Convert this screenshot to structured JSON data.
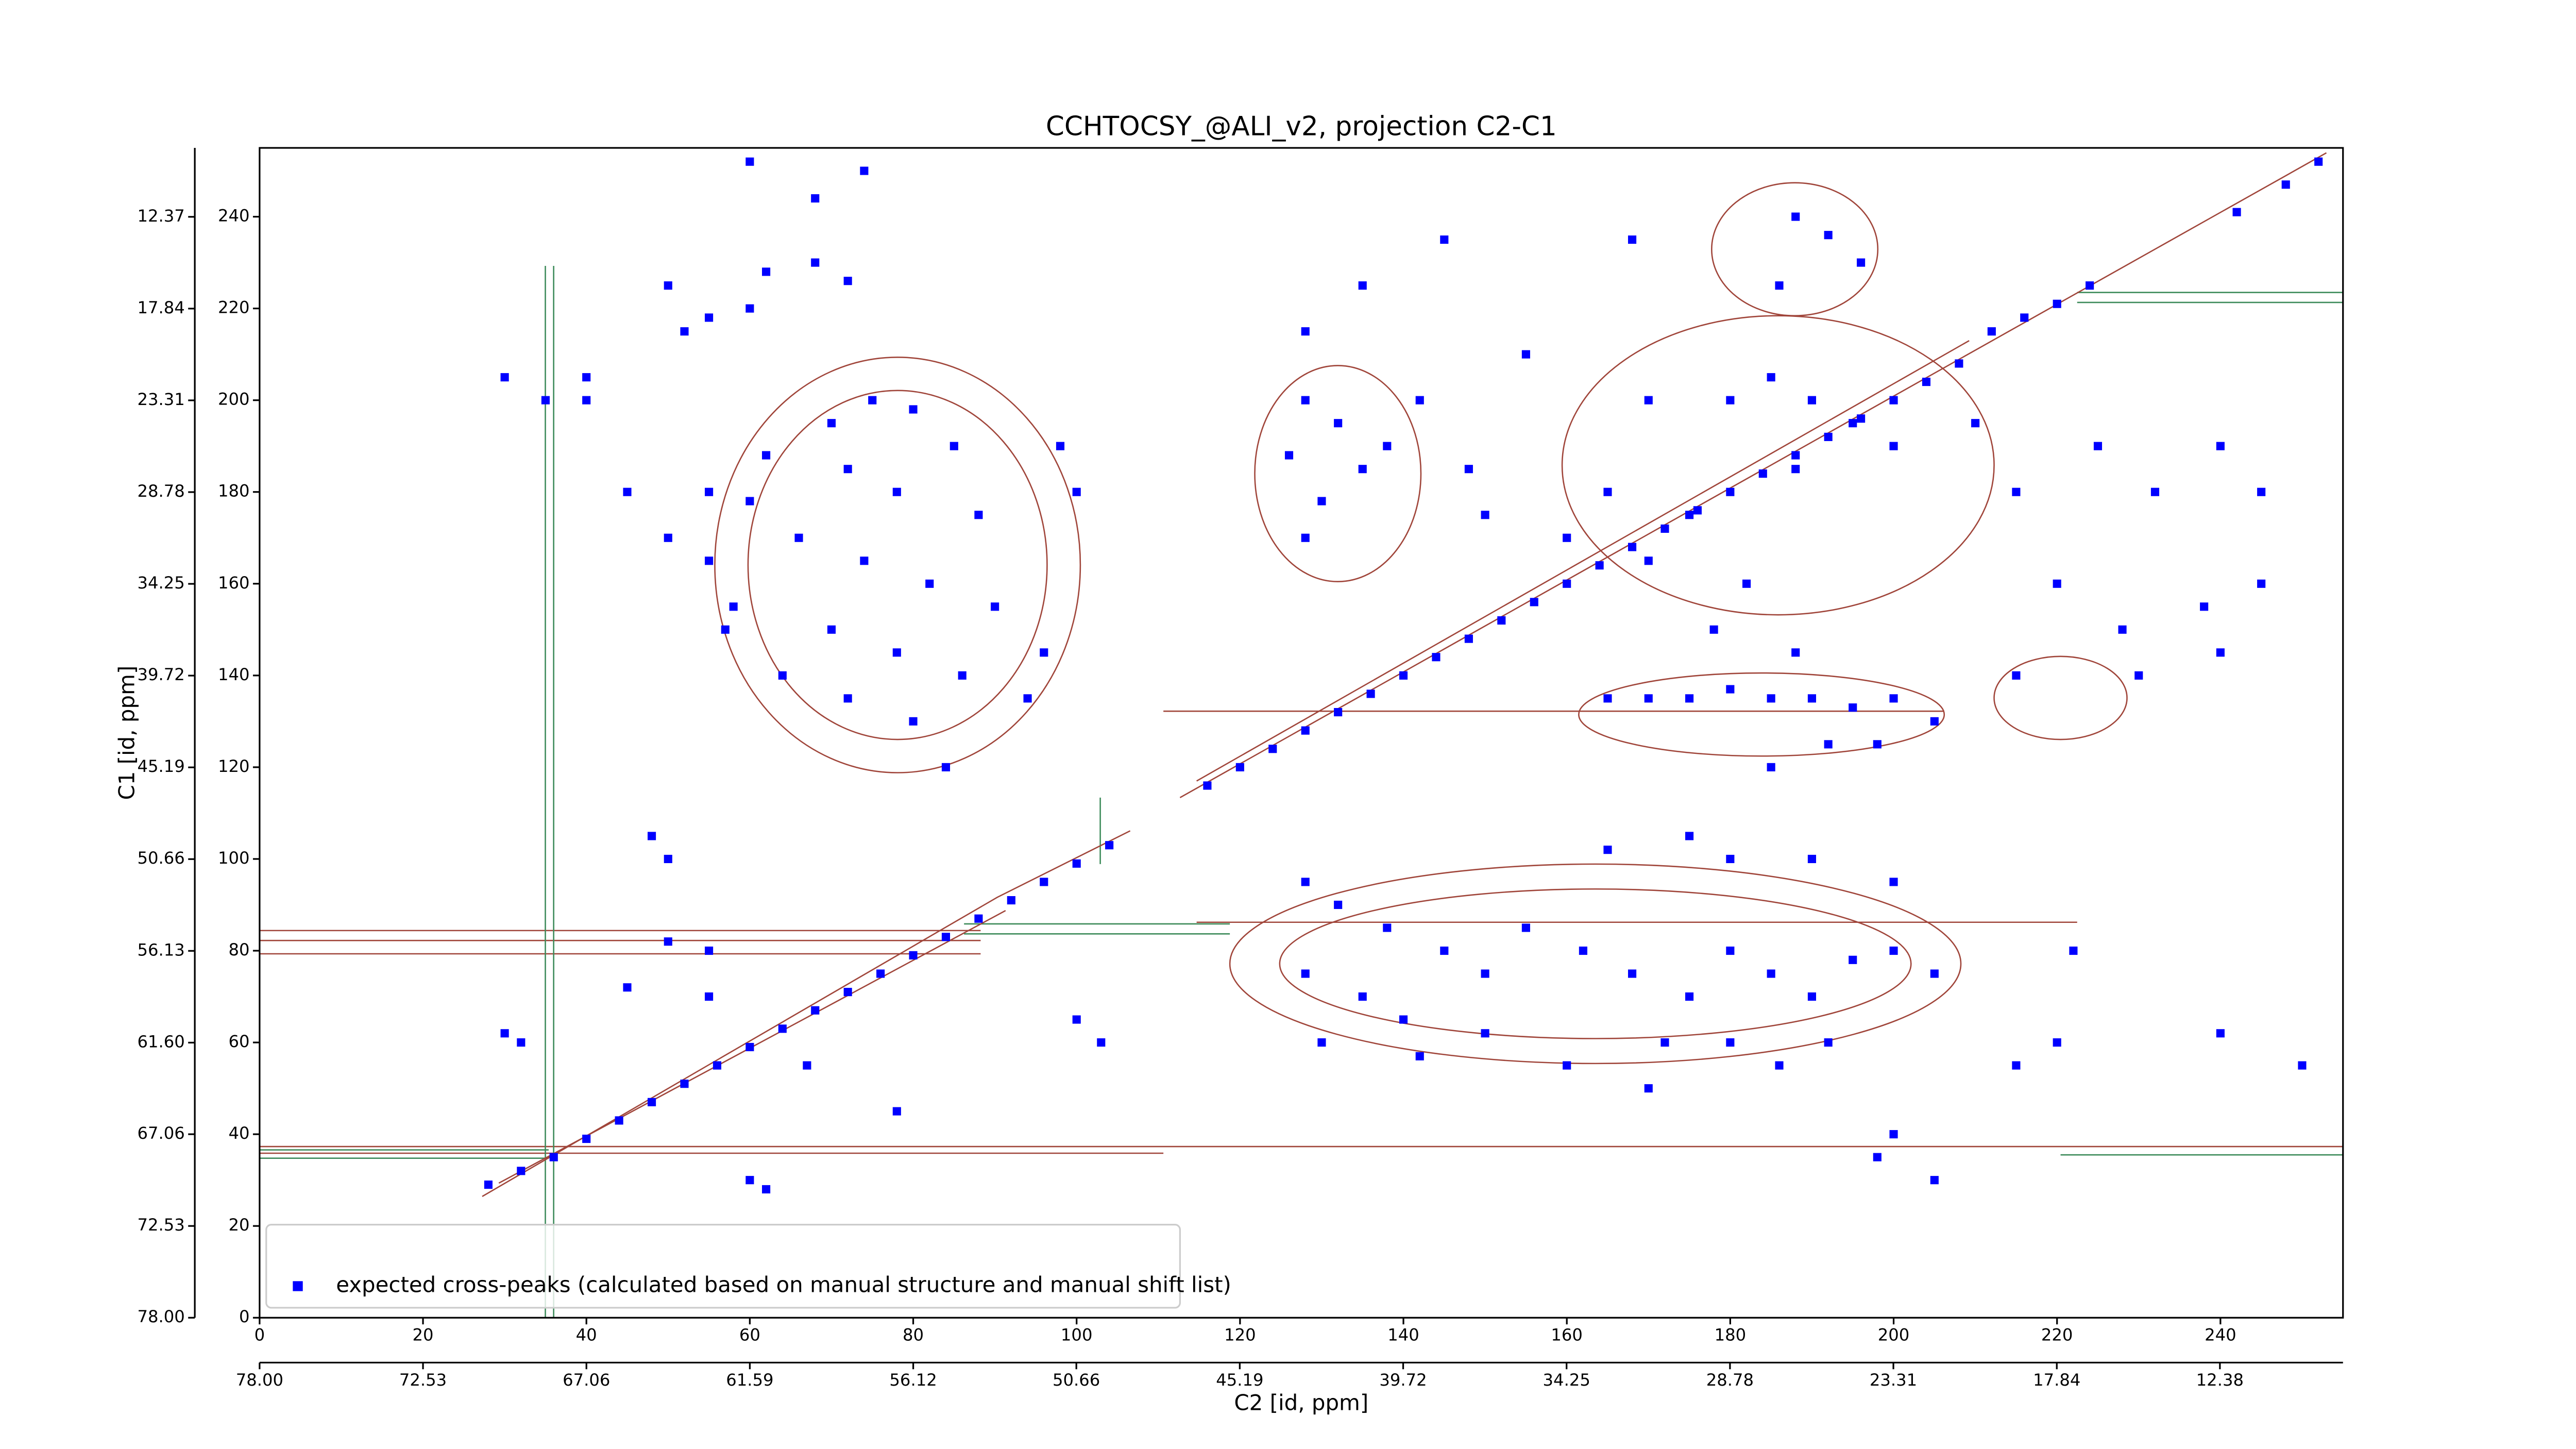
{
  "chart_data": {
    "type": "scatter",
    "title": "CCHTOCSY_@ALI_v2, projection C2-C1",
    "xlabel": "C2 [id, ppm]",
    "ylabel": "C1 [id, ppm]",
    "xlim": [
      0,
      255
    ],
    "ylim": [
      0,
      255
    ],
    "xticks": [
      0,
      20,
      40,
      60,
      80,
      100,
      120,
      140,
      160,
      180,
      200,
      220,
      240
    ],
    "yticks": [
      0,
      20,
      40,
      60,
      80,
      100,
      120,
      140,
      160,
      180,
      200,
      220,
      240
    ],
    "x2lim": [
      78,
      8.26
    ],
    "x2ticks": [
      {
        "value": 78,
        "label": "78.00"
      },
      72.53,
      67.06,
      61.59,
      56.12,
      50.66,
      45.19,
      39.72,
      34.25,
      28.78,
      23.31,
      17.84,
      12.38
    ],
    "y2lim": [
      78,
      8.26
    ],
    "y2ticks": [
      {
        "value": 78,
        "label": "78.00"
      },
      72.53,
      67.06,
      {
        "value": 61.6,
        "label": "61.60"
      },
      56.13,
      50.66,
      45.19,
      39.72,
      34.25,
      28.78,
      23.31,
      17.84,
      12.37
    ],
    "legend": "lower left",
    "series": [
      {
        "name": "expected cross-peaks (calculated based on manual structure and manual shift list)",
        "color": "#0000ff",
        "x": [
          28,
          32,
          36,
          40,
          44,
          48,
          52,
          56,
          60,
          64,
          68,
          72,
          76,
          80,
          84,
          88,
          92,
          96,
          100,
          104,
          116,
          120,
          124,
          128,
          132,
          136,
          140,
          144,
          148,
          152,
          156,
          160,
          164,
          168,
          172,
          176,
          180,
          184,
          188,
          192,
          196,
          200,
          204,
          208,
          212,
          216,
          220,
          224,
          242,
          248,
          252,
          70,
          75,
          80,
          85,
          72,
          78,
          88,
          66,
          74,
          82,
          90,
          70,
          78,
          86,
          64,
          72,
          80,
          94,
          84,
          60,
          58,
          100,
          98,
          62,
          96,
          55,
          50,
          55,
          45,
          57,
          40,
          52,
          55,
          30,
          35,
          40,
          62,
          68,
          72,
          50,
          60,
          68,
          74,
          60,
          128,
          132,
          126,
          135,
          130,
          128,
          138,
          142,
          128,
          135,
          145,
          168,
          188,
          192,
          196,
          186,
          185,
          190,
          195,
          200,
          188,
          180,
          175,
          170,
          182,
          178,
          165,
          160,
          150,
          148,
          155,
          170,
          210,
          215,
          225,
          232,
          240,
          245,
          220,
          228,
          238,
          240,
          230,
          215,
          245,
          165,
          170,
          175,
          180,
          185,
          190,
          195,
          200,
          205,
          188,
          192,
          198,
          185,
          128,
          132,
          138,
          145,
          150,
          128,
          135,
          140,
          130,
          155,
          162,
          168,
          175,
          180,
          185,
          190,
          195,
          200,
          205,
          172,
          180,
          186,
          192,
          160,
          150,
          142,
          170,
          200,
          180,
          175,
          165,
          190,
          222,
          220,
          215,
          240,
          250,
          200,
          205,
          198,
          103,
          100,
          50,
          55,
          45,
          55,
          30,
          32,
          67,
          78,
          60,
          62,
          48,
          50
        ],
        "y": [
          29,
          32,
          35,
          39,
          43,
          47,
          51,
          55,
          59,
          63,
          67,
          71,
          75,
          79,
          83,
          87,
          91,
          95,
          99,
          103,
          116,
          120,
          124,
          128,
          132,
          136,
          140,
          144,
          148,
          152,
          156,
          160,
          164,
          168,
          172,
          176,
          180,
          184,
          188,
          192,
          196,
          200,
          204,
          208,
          215,
          218,
          221,
          225,
          241,
          247,
          252,
          195,
          200,
          198,
          190,
          185,
          180,
          175,
          170,
          165,
          160,
          155,
          150,
          145,
          140,
          140,
          135,
          130,
          135,
          120,
          178,
          155,
          180,
          190,
          188,
          145,
          180,
          170,
          165,
          180,
          150,
          200,
          215,
          218,
          205,
          200,
          205,
          228,
          230,
          226,
          225,
          220,
          244,
          250,
          252,
          200,
          195,
          188,
          185,
          178,
          170,
          190,
          200,
          215,
          225,
          235,
          235,
          240,
          236,
          230,
          225,
          205,
          200,
          195,
          190,
          185,
          200,
          175,
          165,
          160,
          150,
          180,
          170,
          175,
          185,
          210,
          200,
          195,
          180,
          190,
          180,
          190,
          180,
          160,
          150,
          155,
          145,
          140,
          140,
          160,
          135,
          135,
          135,
          137,
          135,
          135,
          133,
          135,
          130,
          145,
          125,
          125,
          120,
          95,
          90,
          85,
          80,
          75,
          75,
          70,
          65,
          60,
          85,
          80,
          75,
          70,
          80,
          75,
          70,
          78,
          80,
          75,
          60,
          60,
          55,
          60,
          55,
          62,
          57,
          50,
          95,
          100,
          105,
          102,
          100,
          80,
          60,
          55,
          62,
          55,
          40,
          30,
          35,
          60,
          65,
          82,
          80,
          72,
          70,
          62,
          60,
          55,
          45,
          30,
          28,
          105,
          100
        ]
      }
    ]
  }
}
